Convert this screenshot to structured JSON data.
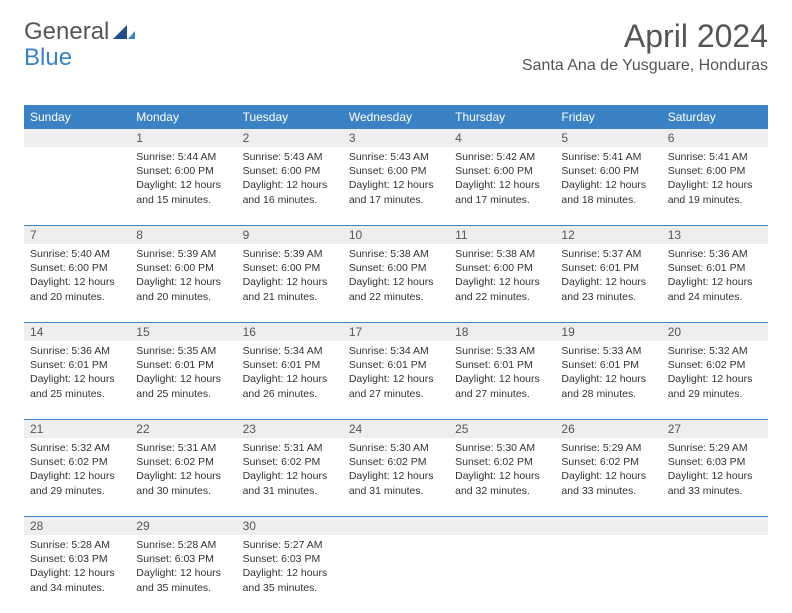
{
  "logo": {
    "text1": "General",
    "text2": "Blue"
  },
  "title": "April 2024",
  "location": "Santa Ana de Yusguare, Honduras",
  "headers": [
    "Sunday",
    "Monday",
    "Tuesday",
    "Wednesday",
    "Thursday",
    "Friday",
    "Saturday"
  ],
  "colors": {
    "header_bg": "#3b82c4",
    "daynum_bg": "#eeeeee",
    "rule": "#3b82c4"
  },
  "weeks": [
    [
      null,
      {
        "n": "1",
        "sr": "Sunrise: 5:44 AM",
        "ss": "Sunset: 6:00 PM",
        "d1": "Daylight: 12 hours",
        "d2": "and 15 minutes."
      },
      {
        "n": "2",
        "sr": "Sunrise: 5:43 AM",
        "ss": "Sunset: 6:00 PM",
        "d1": "Daylight: 12 hours",
        "d2": "and 16 minutes."
      },
      {
        "n": "3",
        "sr": "Sunrise: 5:43 AM",
        "ss": "Sunset: 6:00 PM",
        "d1": "Daylight: 12 hours",
        "d2": "and 17 minutes."
      },
      {
        "n": "4",
        "sr": "Sunrise: 5:42 AM",
        "ss": "Sunset: 6:00 PM",
        "d1": "Daylight: 12 hours",
        "d2": "and 17 minutes."
      },
      {
        "n": "5",
        "sr": "Sunrise: 5:41 AM",
        "ss": "Sunset: 6:00 PM",
        "d1": "Daylight: 12 hours",
        "d2": "and 18 minutes."
      },
      {
        "n": "6",
        "sr": "Sunrise: 5:41 AM",
        "ss": "Sunset: 6:00 PM",
        "d1": "Daylight: 12 hours",
        "d2": "and 19 minutes."
      }
    ],
    [
      {
        "n": "7",
        "sr": "Sunrise: 5:40 AM",
        "ss": "Sunset: 6:00 PM",
        "d1": "Daylight: 12 hours",
        "d2": "and 20 minutes."
      },
      {
        "n": "8",
        "sr": "Sunrise: 5:39 AM",
        "ss": "Sunset: 6:00 PM",
        "d1": "Daylight: 12 hours",
        "d2": "and 20 minutes."
      },
      {
        "n": "9",
        "sr": "Sunrise: 5:39 AM",
        "ss": "Sunset: 6:00 PM",
        "d1": "Daylight: 12 hours",
        "d2": "and 21 minutes."
      },
      {
        "n": "10",
        "sr": "Sunrise: 5:38 AM",
        "ss": "Sunset: 6:00 PM",
        "d1": "Daylight: 12 hours",
        "d2": "and 22 minutes."
      },
      {
        "n": "11",
        "sr": "Sunrise: 5:38 AM",
        "ss": "Sunset: 6:00 PM",
        "d1": "Daylight: 12 hours",
        "d2": "and 22 minutes."
      },
      {
        "n": "12",
        "sr": "Sunrise: 5:37 AM",
        "ss": "Sunset: 6:01 PM",
        "d1": "Daylight: 12 hours",
        "d2": "and 23 minutes."
      },
      {
        "n": "13",
        "sr": "Sunrise: 5:36 AM",
        "ss": "Sunset: 6:01 PM",
        "d1": "Daylight: 12 hours",
        "d2": "and 24 minutes."
      }
    ],
    [
      {
        "n": "14",
        "sr": "Sunrise: 5:36 AM",
        "ss": "Sunset: 6:01 PM",
        "d1": "Daylight: 12 hours",
        "d2": "and 25 minutes."
      },
      {
        "n": "15",
        "sr": "Sunrise: 5:35 AM",
        "ss": "Sunset: 6:01 PM",
        "d1": "Daylight: 12 hours",
        "d2": "and 25 minutes."
      },
      {
        "n": "16",
        "sr": "Sunrise: 5:34 AM",
        "ss": "Sunset: 6:01 PM",
        "d1": "Daylight: 12 hours",
        "d2": "and 26 minutes."
      },
      {
        "n": "17",
        "sr": "Sunrise: 5:34 AM",
        "ss": "Sunset: 6:01 PM",
        "d1": "Daylight: 12 hours",
        "d2": "and 27 minutes."
      },
      {
        "n": "18",
        "sr": "Sunrise: 5:33 AM",
        "ss": "Sunset: 6:01 PM",
        "d1": "Daylight: 12 hours",
        "d2": "and 27 minutes."
      },
      {
        "n": "19",
        "sr": "Sunrise: 5:33 AM",
        "ss": "Sunset: 6:01 PM",
        "d1": "Daylight: 12 hours",
        "d2": "and 28 minutes."
      },
      {
        "n": "20",
        "sr": "Sunrise: 5:32 AM",
        "ss": "Sunset: 6:02 PM",
        "d1": "Daylight: 12 hours",
        "d2": "and 29 minutes."
      }
    ],
    [
      {
        "n": "21",
        "sr": "Sunrise: 5:32 AM",
        "ss": "Sunset: 6:02 PM",
        "d1": "Daylight: 12 hours",
        "d2": "and 29 minutes."
      },
      {
        "n": "22",
        "sr": "Sunrise: 5:31 AM",
        "ss": "Sunset: 6:02 PM",
        "d1": "Daylight: 12 hours",
        "d2": "and 30 minutes."
      },
      {
        "n": "23",
        "sr": "Sunrise: 5:31 AM",
        "ss": "Sunset: 6:02 PM",
        "d1": "Daylight: 12 hours",
        "d2": "and 31 minutes."
      },
      {
        "n": "24",
        "sr": "Sunrise: 5:30 AM",
        "ss": "Sunset: 6:02 PM",
        "d1": "Daylight: 12 hours",
        "d2": "and 31 minutes."
      },
      {
        "n": "25",
        "sr": "Sunrise: 5:30 AM",
        "ss": "Sunset: 6:02 PM",
        "d1": "Daylight: 12 hours",
        "d2": "and 32 minutes."
      },
      {
        "n": "26",
        "sr": "Sunrise: 5:29 AM",
        "ss": "Sunset: 6:02 PM",
        "d1": "Daylight: 12 hours",
        "d2": "and 33 minutes."
      },
      {
        "n": "27",
        "sr": "Sunrise: 5:29 AM",
        "ss": "Sunset: 6:03 PM",
        "d1": "Daylight: 12 hours",
        "d2": "and 33 minutes."
      }
    ],
    [
      {
        "n": "28",
        "sr": "Sunrise: 5:28 AM",
        "ss": "Sunset: 6:03 PM",
        "d1": "Daylight: 12 hours",
        "d2": "and 34 minutes."
      },
      {
        "n": "29",
        "sr": "Sunrise: 5:28 AM",
        "ss": "Sunset: 6:03 PM",
        "d1": "Daylight: 12 hours",
        "d2": "and 35 minutes."
      },
      {
        "n": "30",
        "sr": "Sunrise: 5:27 AM",
        "ss": "Sunset: 6:03 PM",
        "d1": "Daylight: 12 hours",
        "d2": "and 35 minutes."
      },
      null,
      null,
      null,
      null
    ]
  ]
}
